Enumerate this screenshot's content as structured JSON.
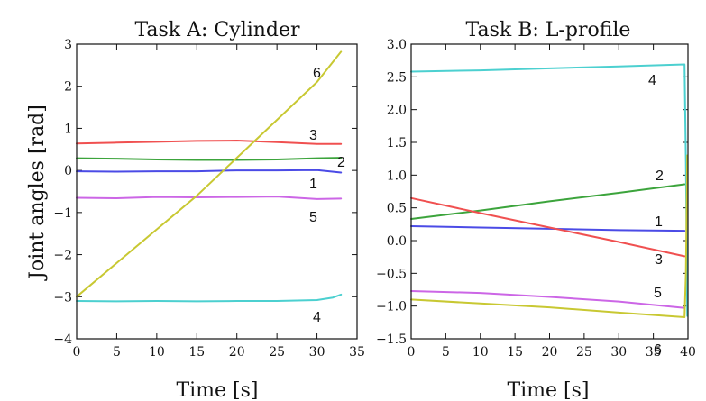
{
  "figure": {
    "ylabel": "Joint angles [rad]"
  },
  "chart_data": [
    {
      "type": "line",
      "title": "Task A: Cylinder",
      "xlabel": "Time [s]",
      "ylabel": "Joint angles [rad]",
      "xlim": [
        0,
        35
      ],
      "ylim": [
        -4,
        3
      ],
      "xticks": [
        0,
        5,
        10,
        15,
        20,
        25,
        30,
        35
      ],
      "xtick_labels": [
        "0",
        "5",
        "10",
        "15",
        "20",
        "25",
        "30",
        "35"
      ],
      "yticks": [
        -4,
        -3,
        -2,
        -1,
        0,
        1,
        2,
        3
      ],
      "ytick_labels": [
        "−4",
        "−3",
        "−2",
        "−1",
        "0",
        "1",
        "2",
        "3"
      ],
      "grid": false,
      "series": [
        {
          "name": "1",
          "color": "#4b4be6",
          "x": [
            0,
            5,
            10,
            15,
            20,
            25,
            30,
            33
          ],
          "y": [
            -0.02,
            -0.03,
            -0.02,
            -0.02,
            0.0,
            0.0,
            0.01,
            -0.05
          ]
        },
        {
          "name": "2",
          "color": "#3ca43c",
          "x": [
            0,
            5,
            10,
            15,
            20,
            25,
            30,
            33
          ],
          "y": [
            0.29,
            0.28,
            0.26,
            0.25,
            0.25,
            0.26,
            0.29,
            0.3
          ]
        },
        {
          "name": "3",
          "color": "#f05050",
          "x": [
            0,
            5,
            10,
            15,
            20,
            25,
            30,
            33
          ],
          "y": [
            0.64,
            0.66,
            0.68,
            0.7,
            0.71,
            0.67,
            0.63,
            0.63
          ]
        },
        {
          "name": "4",
          "color": "#4cd0d0",
          "x": [
            0,
            5,
            10,
            15,
            20,
            25,
            30,
            32,
            33
          ],
          "y": [
            -3.1,
            -3.11,
            -3.1,
            -3.11,
            -3.1,
            -3.1,
            -3.08,
            -3.02,
            -2.95
          ]
        },
        {
          "name": "5",
          "color": "#cc66e6",
          "x": [
            0,
            5,
            10,
            15,
            20,
            25,
            30,
            33
          ],
          "y": [
            -0.65,
            -0.66,
            -0.63,
            -0.64,
            -0.63,
            -0.62,
            -0.68,
            -0.67
          ]
        },
        {
          "name": "6",
          "color": "#c8c832",
          "x": [
            0,
            5,
            10,
            15,
            20,
            25,
            30,
            33
          ],
          "y": [
            -3.0,
            -2.2,
            -1.4,
            -0.6,
            0.3,
            1.2,
            2.1,
            2.82
          ]
        }
      ],
      "annotations": [
        "6",
        "3",
        "2",
        "1",
        "5",
        "4"
      ]
    },
    {
      "type": "line",
      "title": "Task B: L-profile",
      "xlabel": "Time [s]",
      "xlim": [
        0,
        40
      ],
      "ylim": [
        -1.5,
        3.0
      ],
      "xticks": [
        0,
        5,
        10,
        15,
        20,
        25,
        30,
        35,
        40
      ],
      "xtick_labels": [
        "0",
        "5",
        "10",
        "15",
        "20",
        "25",
        "30",
        "35",
        "40"
      ],
      "yticks": [
        -1.5,
        -1.0,
        -0.5,
        0.0,
        0.5,
        1.0,
        1.5,
        2.0,
        2.5,
        3.0
      ],
      "ytick_labels": [
        "−1.5",
        "−1.0",
        "−0.5",
        "0.0",
        "0.5",
        "1.0",
        "1.5",
        "2.0",
        "2.5",
        "3.0"
      ],
      "grid": false,
      "series": [
        {
          "name": "1",
          "color": "#4b4be6",
          "x": [
            0,
            10,
            20,
            30,
            39.5
          ],
          "y": [
            0.22,
            0.2,
            0.18,
            0.16,
            0.15
          ]
        },
        {
          "name": "2",
          "color": "#3ca43c",
          "x": [
            0,
            10,
            20,
            30,
            39.5
          ],
          "y": [
            0.33,
            0.46,
            0.6,
            0.73,
            0.86
          ]
        },
        {
          "name": "3",
          "color": "#f05050",
          "x": [
            0,
            10,
            20,
            30,
            39.5
          ],
          "y": [
            0.65,
            0.42,
            0.2,
            -0.02,
            -0.24
          ]
        },
        {
          "name": "4",
          "color": "#4cd0d0",
          "x": [
            0,
            10,
            20,
            30,
            39.5,
            39.7,
            39.9
          ],
          "y": [
            2.58,
            2.6,
            2.63,
            2.66,
            2.69,
            1.2,
            -1.15
          ]
        },
        {
          "name": "5",
          "color": "#cc66e6",
          "x": [
            0,
            10,
            20,
            30,
            39.5
          ],
          "y": [
            -0.77,
            -0.8,
            -0.86,
            -0.93,
            -1.03
          ]
        },
        {
          "name": "6",
          "color": "#c8c832",
          "x": [
            0,
            10,
            20,
            30,
            39.5,
            39.7,
            39.9
          ],
          "y": [
            -0.9,
            -0.96,
            -1.02,
            -1.1,
            -1.17,
            -0.5,
            1.3
          ]
        }
      ],
      "annotations": [
        "4",
        "2",
        "1",
        "3",
        "5",
        "6"
      ]
    }
  ]
}
